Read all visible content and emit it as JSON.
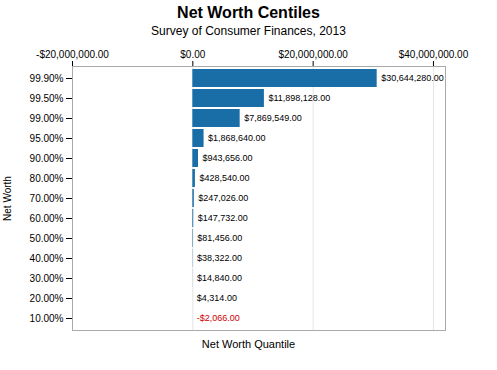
{
  "chart_data": {
    "type": "bar",
    "orientation": "horizontal",
    "title": "Net Worth Centiles",
    "subtitle": "Survey of Consumer Finances, 2013",
    "xlabel": "Net Worth Quantile",
    "ylabel": "Net Worth",
    "categories": [
      "99.90%",
      "99.50%",
      "99.00%",
      "95.00%",
      "90.00%",
      "80.00%",
      "70.00%",
      "60.00%",
      "50.00%",
      "40.00%",
      "30.00%",
      "20.00%",
      "10.00%"
    ],
    "values": [
      30644280,
      11898128,
      7869549,
      1868640,
      943656,
      428540,
      247026,
      147732,
      81456,
      38322,
      14840,
      4314,
      -2066
    ],
    "value_labels": [
      "$30,644,280.00",
      "$11,898,128.00",
      "$7,869,549.00",
      "$1,868,640.00",
      "$943,656.00",
      "$428,540.00",
      "$247,026.00",
      "$147,732.00",
      "$81,456.00",
      "$38,322.00",
      "$14,840.00",
      "$4,314.00",
      "-$2,066.00"
    ],
    "data_labels": true,
    "color": "#1a6ea8",
    "xlim": [
      -20000000,
      42000000
    ],
    "xticks": [
      {
        "value": -20000000,
        "label": "-$20,000,000.00"
      },
      {
        "value": 0,
        "label": "$0.00"
      },
      {
        "value": 20000000,
        "label": "$20,000,000.00"
      },
      {
        "value": 40000000,
        "label": "$40,000,000.00"
      }
    ],
    "grid": true
  }
}
